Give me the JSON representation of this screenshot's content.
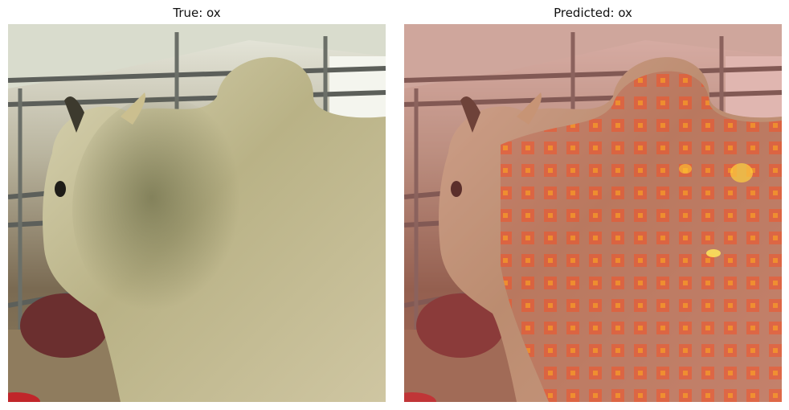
{
  "figure": {
    "panels": [
      {
        "title": "True: ox",
        "image": "ox-photo"
      },
      {
        "title": "Predicted: ox",
        "image": "ox-photo-with-attention-heatmap-overlay"
      }
    ]
  },
  "colors": {
    "background": "#ffffff",
    "heatmap_tint": "#c0504d",
    "heatmap_hotspot": "#ffd23f"
  }
}
